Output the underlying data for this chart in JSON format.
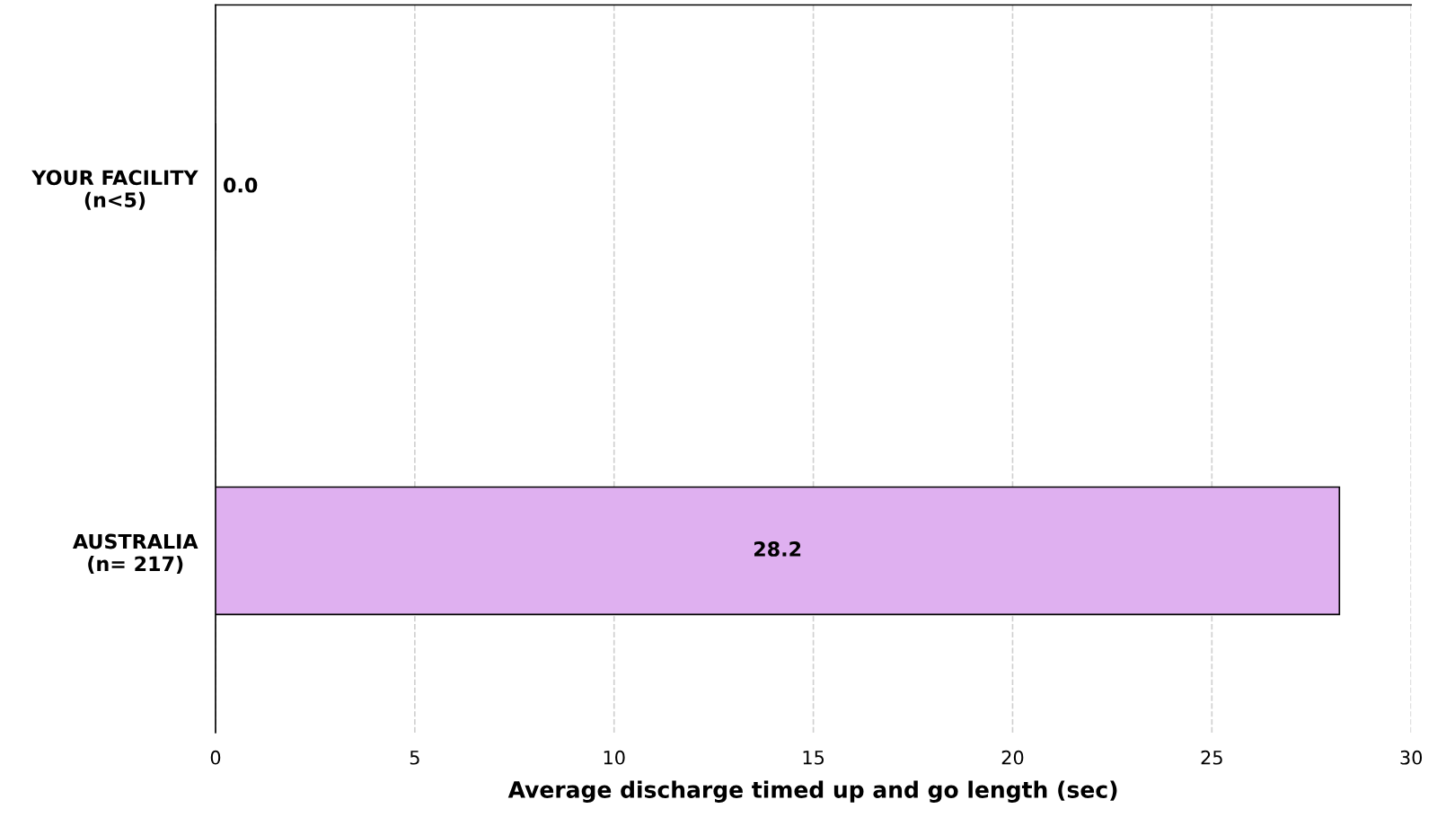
{
  "chart_data": {
    "type": "bar",
    "orientation": "horizontal",
    "categories": [
      "YOUR FACILITY\n(n<5)",
      "AUSTRALIA\n(n= 217)"
    ],
    "values": [
      0.0,
      28.2
    ],
    "value_labels": [
      "0.0",
      "28.2"
    ],
    "color": "#dfb0f0",
    "xlabel": "Average discharge timed up and go length (sec)",
    "xlim": [
      0,
      30
    ],
    "xticks": [
      0,
      5,
      10,
      15,
      20,
      25,
      30
    ],
    "grid": "x",
    "legend": false
  }
}
